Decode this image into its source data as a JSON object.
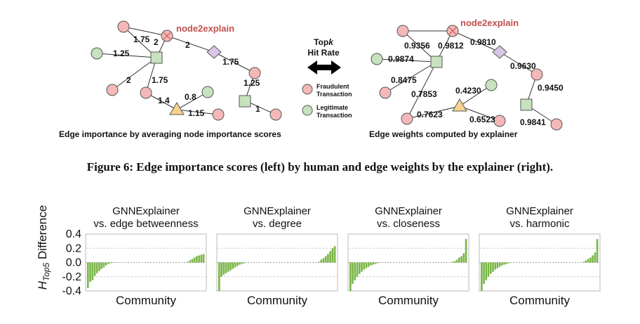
{
  "figure_top": {
    "left_panel": {
      "target_label": "node2explain",
      "caption": "Edge importance by averaging node importance scores",
      "edge_labels": [
        "1.75",
        "2",
        "2",
        "1.25",
        "2",
        "1.75",
        "1.75",
        "1.4",
        "0.8",
        "1.15",
        "1.25",
        "1"
      ]
    },
    "middle": {
      "title_prefix": "Top",
      "title_k": "k",
      "title_line2": "Hit Rate",
      "legend": [
        {
          "line1": "Fraudulent",
          "line2": "Transaction",
          "color": "#f4b8b8"
        },
        {
          "line1": "Legitimate",
          "line2": "Transaction",
          "color": "#c6e2be"
        }
      ]
    },
    "right_panel": {
      "target_label": "node2explain",
      "caption": "Edge weights computed by explainer",
      "edge_labels": [
        "0.9356",
        "0.9812",
        "0.9810",
        "0.9874",
        "0.9630",
        "0.8475",
        "0.7853",
        "0.4230",
        "0.9450",
        "0.7623",
        "0.6523",
        "0.9841"
      ]
    },
    "colors": {
      "fraud_fill": "#f4b8b8",
      "legit_fill": "#c6e2be",
      "target_label": "#c0504d",
      "diamond_fill": "#d9c7e6",
      "triangle_fill": "#f7d28f",
      "bar": "#7ab648"
    }
  },
  "figure_caption": "Figure 6: Edge importance scores (left) by human and edge weights by the explainer (right).",
  "chart_data": [
    {
      "type": "bar",
      "title_line1": "GNNExplainer",
      "title_line2": "vs. edge betweenness",
      "xlabel": "Community",
      "ylabel_main": "H",
      "ylabel_sub": "Top5",
      "ylabel_rest": " Difference",
      "ylim": [
        -0.4,
        0.4
      ],
      "yticks": [
        "0.4",
        "0.2",
        "0.0",
        "-0.2",
        "-0.4"
      ],
      "grid": true,
      "values": [
        -0.36,
        -0.27,
        -0.25,
        -0.19,
        -0.15,
        -0.12,
        -0.09,
        -0.07,
        -0.04,
        -0.02,
        -0.01,
        -0.005,
        0,
        0,
        0,
        0,
        0,
        0,
        0,
        0,
        0,
        0,
        0,
        0,
        0,
        0,
        0,
        0,
        0,
        0,
        0,
        0,
        0,
        0,
        0,
        0,
        0,
        0,
        0,
        0,
        0,
        0,
        0,
        0,
        0.01,
        0.03,
        0.05,
        0.07,
        0.09,
        0.1,
        0.11,
        0.12
      ]
    },
    {
      "type": "bar",
      "title_line1": "GNNExplainer",
      "title_line2": "vs. degree",
      "xlabel": "Community",
      "ylim": [
        -0.4,
        0.4
      ],
      "grid": true,
      "values": [
        -0.4,
        -0.2,
        -0.17,
        -0.15,
        -0.13,
        -0.11,
        -0.09,
        -0.07,
        -0.05,
        -0.03,
        -0.02,
        -0.01,
        0,
        0,
        0,
        0,
        0,
        0,
        0,
        0,
        0,
        0,
        0,
        0,
        0,
        0,
        0,
        0,
        0,
        0,
        0,
        0,
        0,
        0,
        0,
        0,
        0,
        0,
        0,
        0,
        0,
        0,
        0,
        0,
        0.01,
        0.04,
        0.06,
        0.09,
        0.12,
        0.16,
        0.2,
        0.23
      ]
    },
    {
      "type": "bar",
      "title_line1": "GNNExplainer",
      "title_line2": "vs. closeness",
      "xlabel": "Community",
      "ylim": [
        -0.4,
        0.4
      ],
      "grid": true,
      "values": [
        -0.4,
        -0.3,
        -0.25,
        -0.2,
        -0.16,
        -0.13,
        -0.1,
        -0.08,
        -0.06,
        -0.04,
        -0.03,
        -0.02,
        -0.01,
        -0.005,
        0,
        0,
        0,
        0,
        0,
        0,
        0,
        0,
        0,
        0,
        0,
        0,
        0,
        0,
        0,
        0,
        0,
        0,
        0,
        0,
        0,
        0,
        0,
        0,
        0,
        0,
        0,
        0,
        0,
        0,
        0,
        0.01,
        0.02,
        0.04,
        0.07,
        0.09,
        0.13,
        0.33
      ]
    },
    {
      "type": "bar",
      "title_line1": "GNNExplainer",
      "title_line2": "vs. harmonic",
      "xlabel": "Community",
      "ylim": [
        -0.4,
        0.4
      ],
      "grid": true,
      "values": [
        -0.4,
        -0.3,
        -0.25,
        -0.2,
        -0.16,
        -0.13,
        -0.1,
        -0.08,
        -0.06,
        -0.04,
        -0.03,
        -0.02,
        -0.01,
        -0.005,
        0,
        0,
        0,
        0,
        0,
        0,
        0,
        0,
        0,
        0,
        0,
        0,
        0,
        0,
        0,
        0,
        0,
        0,
        0,
        0,
        0,
        0,
        0,
        0,
        0,
        0,
        0,
        0,
        0,
        0,
        0,
        0.01,
        0.03,
        0.05,
        0.07,
        0.1,
        0.14,
        0.33
      ]
    }
  ]
}
